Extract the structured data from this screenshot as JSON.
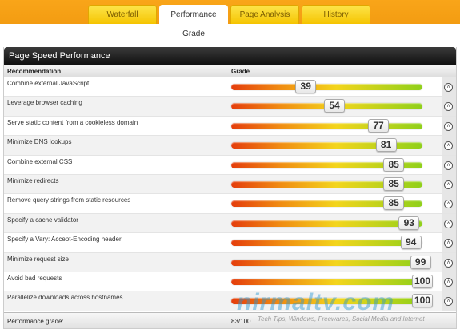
{
  "tabs": [
    {
      "label": "Waterfall",
      "active": false
    },
    {
      "label": "Performance Grade",
      "active": true
    },
    {
      "label": "Page Analysis",
      "active": false
    },
    {
      "label": "History",
      "active": false
    }
  ],
  "panel": {
    "title": "Page Speed Performance",
    "col_recommendation": "Recommendation",
    "col_grade": "Grade"
  },
  "rows": [
    {
      "label": "Combine external JavaScript",
      "score": 39
    },
    {
      "label": "Leverage browser caching",
      "score": 54
    },
    {
      "label": "Serve static content from a cookieless domain",
      "score": 77
    },
    {
      "label": "Minimize DNS lookups",
      "score": 81
    },
    {
      "label": "Combine external CSS",
      "score": 85
    },
    {
      "label": "Minimize redirects",
      "score": 85
    },
    {
      "label": "Remove query strings from static resources",
      "score": 85
    },
    {
      "label": "Specify a cache validator",
      "score": 93
    },
    {
      "label": "Specify a Vary: Accept-Encoding header",
      "score": 94
    },
    {
      "label": "Minimize request size",
      "score": 99
    },
    {
      "label": "Avoid bad requests",
      "score": 100
    },
    {
      "label": "Parallelize downloads across hostnames",
      "score": 100
    }
  ],
  "expand_icon": "expand-icon",
  "footer": {
    "label": "Performance grade:",
    "value": "83/100"
  },
  "watermark": {
    "logo": "nirmaltv.com",
    "tagline": "Tech Tips, Windows, Freewares, Social Media and Internet"
  }
}
